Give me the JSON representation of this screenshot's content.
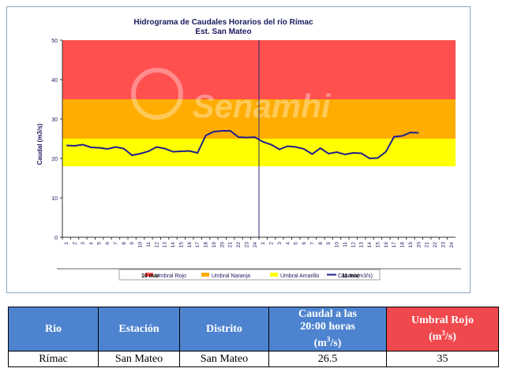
{
  "chart_data": {
    "type": "line",
    "title": "Hidrograma de Caudales Horarios del río Rímac",
    "subtitle": "Est. San Mateo",
    "ylabel": "Caudal  (m3/s)",
    "xlabel": "",
    "ylim": [
      0,
      50
    ],
    "yticks": [
      0,
      10,
      20,
      30,
      40,
      50
    ],
    "xticks": [
      "1",
      "2",
      "3",
      "4",
      "5",
      "6",
      "7",
      "8",
      "9",
      "10",
      "11",
      "12",
      "13",
      "14",
      "15",
      "16",
      "17",
      "18",
      "19",
      "20",
      "21",
      "22",
      "23",
      "24",
      "1",
      "2",
      "3",
      "4",
      "5",
      "6",
      "7",
      "8",
      "9",
      "10",
      "11",
      "12",
      "13",
      "14",
      "15",
      "16",
      "17",
      "18",
      "19",
      "20",
      "21",
      "22",
      "23",
      "24"
    ],
    "day_labels": [
      "10 mar",
      "11 mar"
    ],
    "watermark": "Senamhi",
    "bands": [
      {
        "name": "Umbral Rojo",
        "from": 35,
        "to": 50,
        "color": "#ff5050"
      },
      {
        "name": "Umbral Naranja",
        "from": 25,
        "to": 35,
        "color": "#ffad00"
      },
      {
        "name": "Umbral Amarillo",
        "from": 18,
        "to": 25,
        "color": "#ffff00"
      }
    ],
    "series": [
      {
        "name": "Caudal (m3/s)",
        "color": "#1f1f8f",
        "values": [
          23.3,
          23.2,
          23.5,
          22.8,
          22.7,
          22.4,
          22.9,
          22.5,
          20.8,
          21.2,
          21.8,
          22.9,
          22.5,
          21.7,
          21.8,
          21.9,
          21.4,
          25.8,
          26.8,
          27.0,
          27.0,
          25.4,
          25.3,
          25.4,
          24.2,
          23.5,
          22.3,
          23.1,
          22.9,
          22.4,
          21.1,
          22.6,
          21.2,
          21.6,
          21.0,
          21.4,
          21.3,
          20.0,
          20.1,
          21.7,
          25.5,
          25.7,
          26.6,
          26.5
        ]
      }
    ],
    "legend_position": "bottom",
    "grid": false
  },
  "table": {
    "headers": {
      "rio": "Rio",
      "estacion": "Estación",
      "distrito": "Distrito",
      "caudal_line1": "Caudal a las",
      "caudal_line2": "20:00 horas",
      "caudal_unit_pre": "(m",
      "caudal_unit_sup": "3",
      "caudal_unit_post": "/s)",
      "umbral_line1": "Umbral Rojo",
      "umbral_unit_pre": "(m",
      "umbral_unit_sup": "3",
      "umbral_unit_post": "/s)"
    },
    "row": {
      "rio": "Rímac",
      "estacion": "San Mateo",
      "distrito": "San Mateo",
      "caudal": "26.5",
      "umbral": "35"
    },
    "colors": {
      "header_blue": "#4e84cf",
      "header_red": "#f0494d"
    }
  }
}
